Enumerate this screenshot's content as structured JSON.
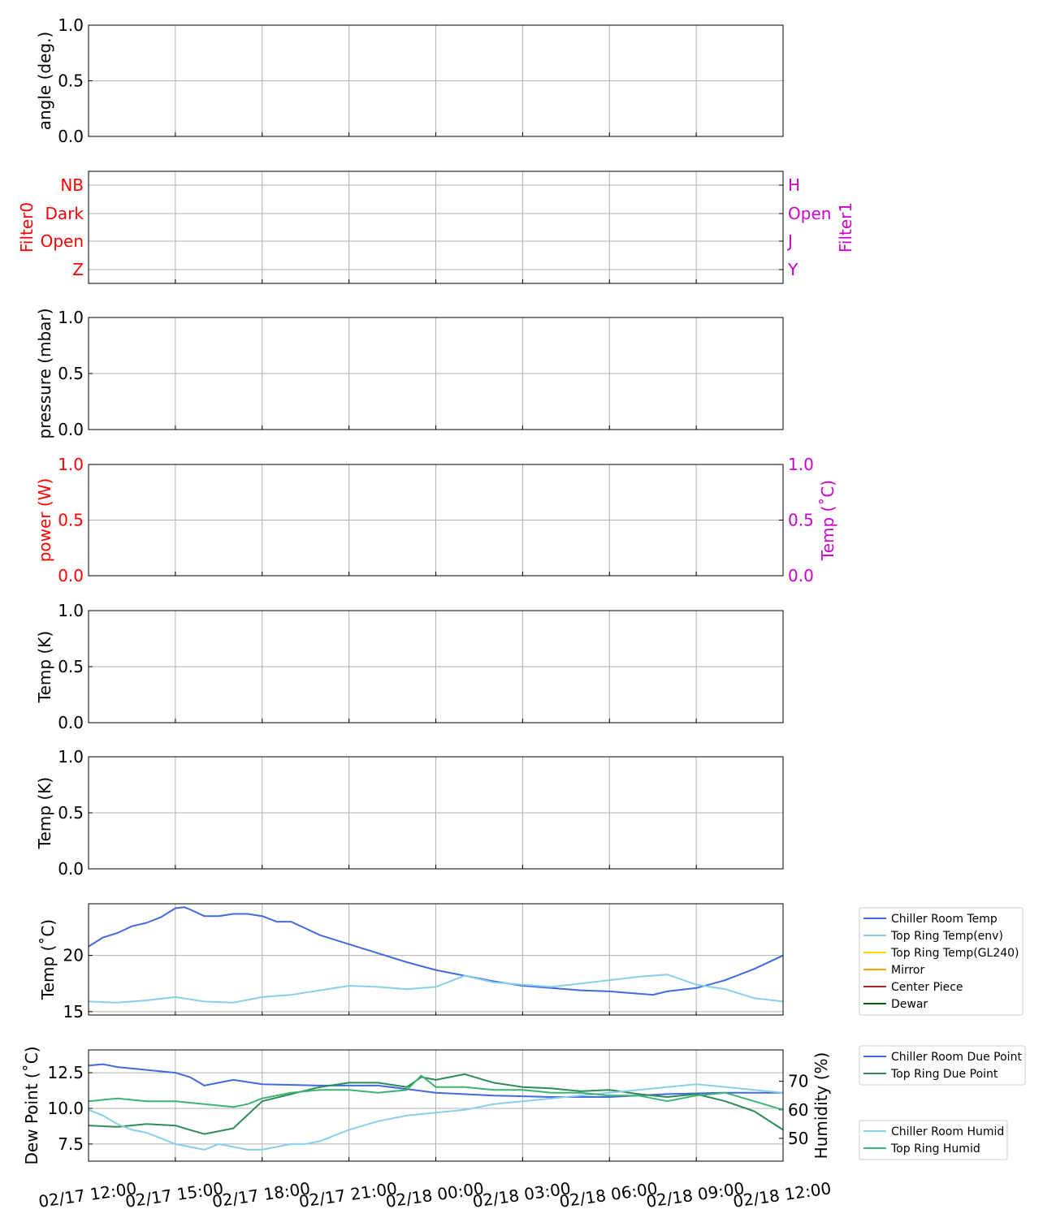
{
  "x_ticks": [
    "02/17 12:00",
    "02/17 15:00",
    "02/17 18:00",
    "02/17 21:00",
    "02/18 00:00",
    "02/18 03:00",
    "02/18 06:00",
    "02/18 09:00",
    "02/18 12:00"
  ],
  "colors": {
    "chiller_room": "#4169e1",
    "top_ring_env": "#87ceeb",
    "top_ring_gl240": "#ffd700",
    "mirror": "#ffa500",
    "center_piece": "#b22222",
    "dewar": "#006400",
    "top_ring_dew": "#2e8b57",
    "top_ring_humid": "#3cb371",
    "red": "#ff0000",
    "magenta": "#cc00cc"
  },
  "chart_data": [
    {
      "type": "line",
      "ylabel": "angle (deg.)",
      "yticks": [
        "0.0",
        "0.5",
        "1.0"
      ],
      "ylim": [
        0,
        1
      ],
      "grid": true,
      "series": []
    },
    {
      "type": "line",
      "ylabel": "Filter0",
      "ylabel_right": "Filter1",
      "yticks": [
        "Z",
        "Open",
        "Dark",
        "NB"
      ],
      "yticks_right": [
        "Y",
        "J",
        "Open",
        "H"
      ],
      "grid": true,
      "series": []
    },
    {
      "type": "line",
      "ylabel": "pressure (mbar)",
      "yticks": [
        "0.0",
        "0.5",
        "1.0"
      ],
      "ylim": [
        0,
        1
      ],
      "grid": true,
      "series": []
    },
    {
      "type": "line",
      "ylabel": "power (W)",
      "ylabel_right": "Temp (˚C)",
      "yticks": [
        "0.0",
        "0.5",
        "1.0"
      ],
      "yticks_right": [
        "0.0",
        "0.5",
        "1.0"
      ],
      "ylim": [
        0,
        1
      ],
      "grid": true,
      "series": []
    },
    {
      "type": "line",
      "ylabel": "Temp (K)",
      "yticks": [
        "0.0",
        "0.5",
        "1.0"
      ],
      "ylim": [
        0,
        1
      ],
      "grid": true,
      "series": []
    },
    {
      "type": "line",
      "ylabel": "Temp (K)",
      "yticks": [
        "0.0",
        "0.5",
        "1.0"
      ],
      "ylim": [
        0,
        1
      ],
      "grid": true,
      "series": []
    },
    {
      "type": "line",
      "ylabel": "Temp (˚C)",
      "yticks": [
        "15",
        "20"
      ],
      "ylim": [
        14.7,
        24.6
      ],
      "xlim_hours": [
        0,
        24
      ],
      "grid": true,
      "legend": "right-outside",
      "series": [
        {
          "name": "Chiller Room Temp",
          "color": "#4169e1",
          "x": [
            0,
            0.5,
            1,
            1.5,
            2,
            2.5,
            3,
            3.3,
            3.5,
            4,
            4.5,
            5,
            5.5,
            6,
            6.5,
            7,
            7.5,
            8,
            9,
            10,
            11,
            12,
            13,
            14,
            15,
            16,
            17,
            18,
            19,
            19.5,
            20,
            21,
            22,
            23,
            24
          ],
          "y": [
            20.8,
            21.6,
            22.0,
            22.6,
            22.9,
            23.4,
            24.2,
            24.3,
            24.1,
            23.5,
            23.5,
            23.7,
            23.7,
            23.5,
            23.0,
            23.0,
            22.4,
            21.8,
            21.0,
            20.2,
            19.4,
            18.7,
            18.2,
            17.7,
            17.3,
            17.1,
            16.9,
            16.8,
            16.6,
            16.5,
            16.8,
            17.1,
            17.8,
            18.8,
            20.0
          ]
        },
        {
          "name": "Top Ring Temp(env)",
          "color": "#87ceeb",
          "x": [
            0,
            1,
            2,
            3,
            4,
            5,
            6,
            7,
            8,
            9,
            10,
            11,
            12,
            13,
            14,
            15,
            16,
            17,
            18,
            19,
            20,
            21,
            22,
            23,
            24
          ],
          "y": [
            15.9,
            15.8,
            16.0,
            16.3,
            15.9,
            15.8,
            16.3,
            16.5,
            16.9,
            17.3,
            17.2,
            17.0,
            17.2,
            18.2,
            17.6,
            17.4,
            17.2,
            17.5,
            17.8,
            18.1,
            18.3,
            17.4,
            17.0,
            16.2,
            15.9
          ]
        },
        {
          "name": "Top Ring Temp(GL240)",
          "color": "#ffd700",
          "x": [],
          "y": []
        },
        {
          "name": "Mirror",
          "color": "#ffa500",
          "x": [],
          "y": []
        },
        {
          "name": "Center Piece",
          "color": "#b22222",
          "x": [],
          "y": []
        },
        {
          "name": "Dewar",
          "color": "#006400",
          "x": [],
          "y": []
        }
      ]
    },
    {
      "type": "line",
      "ylabel": "Dew Point (˚C)",
      "ylabel_right": "Humidity (%)",
      "yticks": [
        "7.5",
        "10.0",
        "12.5"
      ],
      "ylim": [
        6.3,
        14.1
      ],
      "yticks_right": [
        "50",
        "60",
        "70"
      ],
      "ylim_right": [
        42,
        81
      ],
      "xlim_hours": [
        0,
        24
      ],
      "grid": true,
      "legend": "right-outside",
      "series": [
        {
          "name": "Chiller Room Due Point",
          "color": "#4169e1",
          "axis": "left",
          "x": [
            0,
            0.5,
            1,
            2,
            3,
            3.5,
            4,
            4.5,
            5,
            6,
            8,
            10,
            12,
            14,
            16,
            18,
            20,
            22,
            24
          ],
          "y": [
            13.0,
            13.1,
            12.9,
            12.7,
            12.5,
            12.2,
            11.6,
            11.8,
            12.0,
            11.7,
            11.6,
            11.6,
            11.1,
            10.9,
            10.8,
            10.8,
            11.0,
            11.1,
            11.1
          ]
        },
        {
          "name": "Top Ring Due Point",
          "color": "#2e8b57",
          "axis": "left",
          "x": [
            0,
            1,
            2,
            3,
            3.5,
            4,
            5,
            6,
            7,
            8,
            9,
            10,
            11,
            11.5,
            12,
            13,
            14,
            15,
            16,
            17,
            18,
            19,
            20,
            21,
            22,
            23,
            24
          ],
          "y": [
            8.8,
            8.7,
            8.9,
            8.8,
            8.5,
            8.2,
            8.6,
            10.5,
            11.0,
            11.5,
            11.8,
            11.8,
            11.5,
            12.2,
            12.0,
            12.4,
            11.8,
            11.5,
            11.4,
            11.2,
            11.3,
            11.0,
            10.8,
            11.0,
            10.5,
            9.8,
            8.5
          ]
        },
        {
          "name": "Chiller Room Humid",
          "color": "#87ceeb",
          "axis": "right",
          "x": [
            0,
            0.5,
            1,
            1.5,
            2,
            2.5,
            3,
            3.5,
            4,
            4.5,
            5,
            5.5,
            6,
            6.5,
            7,
            7.5,
            8,
            9,
            10,
            11,
            12,
            13,
            14,
            15,
            16,
            17,
            18,
            19,
            20,
            21,
            22,
            23,
            24
          ],
          "y": [
            60,
            58,
            55,
            53,
            52,
            50,
            48,
            47,
            46,
            48,
            47,
            46,
            46,
            47,
            48,
            48,
            49,
            53,
            56,
            58,
            59,
            60,
            62,
            63,
            64,
            65,
            66,
            67,
            68,
            69,
            68,
            67,
            66
          ]
        },
        {
          "name": "Top Ring Humid",
          "color": "#3cb371",
          "axis": "right",
          "x": [
            0,
            1,
            2,
            3,
            4,
            5,
            5.5,
            6,
            7,
            8,
            9,
            10,
            11,
            11.5,
            12,
            13,
            14,
            15,
            16,
            17,
            18,
            19,
            20,
            21,
            22,
            23,
            24
          ],
          "y": [
            63,
            64,
            63,
            63,
            62,
            61,
            62,
            64,
            66,
            67,
            67,
            66,
            67,
            72,
            68,
            68,
            67,
            67,
            66,
            66,
            65,
            65,
            63,
            65,
            66,
            63,
            60
          ]
        }
      ]
    }
  ]
}
